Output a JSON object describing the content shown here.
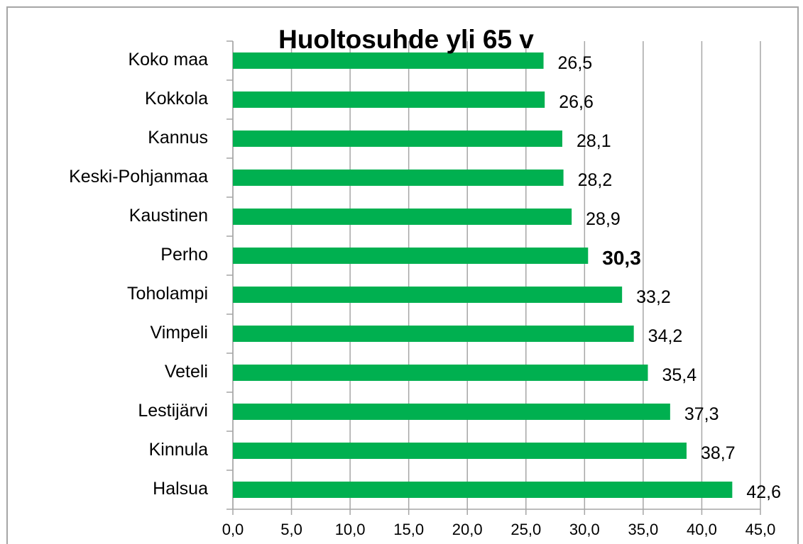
{
  "chart_data": {
    "type": "barh",
    "title": "Huoltosuhde yli 65 v",
    "categories": [
      "Koko maa",
      "Kokkola",
      "Kannus",
      "Keski-Pohjanmaa",
      "Kaustinen",
      "Perho",
      "Toholampi",
      "Vimpeli",
      "Veteli",
      "Lestijärvi",
      "Kinnula",
      "Halsua"
    ],
    "values": [
      26.5,
      26.6,
      28.1,
      28.2,
      28.9,
      30.3,
      33.2,
      34.2,
      35.4,
      37.3,
      38.7,
      42.6
    ],
    "value_labels": [
      "26,5",
      "26,6",
      "28,1",
      "28,2",
      "28,9",
      "30,3",
      "33,2",
      "34,2",
      "35,4",
      "37,3",
      "38,7",
      "42,6"
    ],
    "color": "#00b050",
    "bold_label": "Perho",
    "xlim": [
      0,
      45
    ],
    "xticks": [
      {
        "value": 0,
        "label": "0,0"
      },
      {
        "value": 5,
        "label": "5,0"
      },
      {
        "value": 10,
        "label": "10,0"
      },
      {
        "value": 15,
        "label": "15,0"
      },
      {
        "value": 20,
        "label": "20,0"
      },
      {
        "value": 25,
        "label": "25,0"
      },
      {
        "value": 30,
        "label": "30,0"
      },
      {
        "value": 35,
        "label": "35,0"
      },
      {
        "value": 40,
        "label": "40,0"
      },
      {
        "value": 45,
        "label": "45,0"
      }
    ],
    "grid": true
  }
}
